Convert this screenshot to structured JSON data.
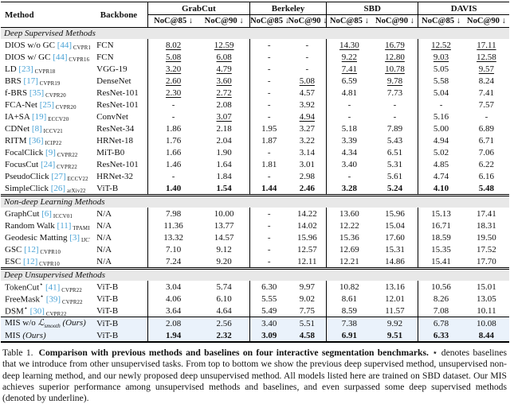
{
  "colors": {
    "citation_blue": "#4AA3D6",
    "section_band": "#E8E8E8",
    "highlight_row": "#EAF2FB"
  },
  "table": {
    "headers": {
      "method": "Method",
      "backbone": "Backbone",
      "benchmarks": [
        "GrabCut",
        "Berkeley",
        "SBD",
        "DAVIS"
      ],
      "noc85": "NoC@85 ↓",
      "noc90": "NoC@90 ↓"
    },
    "sections": [
      {
        "title": "Deep Supervised Methods",
        "double_rule": false,
        "rows": [
          {
            "name": "DIOS w/o GC",
            "cite": "44",
            "venue": "CVPR16",
            "backbone": "FCN",
            "vals": [
              "8.02",
              "12.59",
              "-",
              "-",
              "14.30",
              "16.79",
              "12.52",
              "17.11"
            ],
            "styles": [
              "u",
              "u",
              "",
              "",
              "u",
              "u",
              "u",
              "u"
            ]
          },
          {
            "name": "DIOS w/ GC",
            "cite": "44",
            "venue": "CVPR16",
            "backbone": "FCN",
            "vals": [
              "5.08",
              "6.08",
              "-",
              "-",
              "9.22",
              "12.80",
              "9.03",
              "12.58"
            ],
            "styles": [
              "u",
              "u",
              "",
              "",
              "u",
              "u",
              "u",
              "u"
            ]
          },
          {
            "name": "LD",
            "cite": "23",
            "venue": "CVPR18",
            "backbone": "VGG-19",
            "vals": [
              "3.20",
              "4.79",
              "-",
              "-",
              "7.41",
              "10.78",
              "5.05",
              "9.57"
            ],
            "styles": [
              "u",
              "u",
              "",
              "",
              "u",
              "u",
              "",
              "u"
            ]
          },
          {
            "name": "BRS",
            "cite": "17",
            "venue": "CVPR19",
            "backbone": "DenseNet",
            "vals": [
              "2.60",
              "3.60",
              "-",
              "5.08",
              "6.59",
              "9.78",
              "5.58",
              "8.24"
            ],
            "styles": [
              "u",
              "u",
              "",
              "u",
              "",
              "u",
              "",
              ""
            ]
          },
          {
            "name": "f-BRS",
            "cite": "35",
            "venue": "CVPR20",
            "backbone": "ResNet-101",
            "vals": [
              "2.30",
              "2.72",
              "-",
              "4.57",
              "4.81",
              "7.73",
              "5.04",
              "7.41"
            ],
            "styles": [
              "u",
              "u",
              "",
              "",
              "",
              "",
              "",
              ""
            ]
          },
          {
            "name": "FCA-Net",
            "cite": "25",
            "venue": "CVPR20",
            "backbone": "ResNet-101",
            "vals": [
              "-",
              "2.08",
              "-",
              "3.92",
              "-",
              "-",
              "-",
              "7.57"
            ],
            "styles": [
              "",
              "",
              "",
              "",
              "",
              "",
              "",
              ""
            ]
          },
          {
            "name": "IA+SA",
            "cite": "19",
            "venue": "ECCV20",
            "backbone": "ConvNet",
            "vals": [
              "-",
              "3.07",
              "-",
              "4.94",
              "-",
              "-",
              "5.16",
              "-"
            ],
            "styles": [
              "",
              "u",
              "",
              "u",
              "",
              "",
              "",
              ""
            ]
          },
          {
            "name": "CDNet",
            "cite": "8",
            "venue": "ICCV21",
            "backbone": "ResNet-34",
            "vals": [
              "1.86",
              "2.18",
              "1.95",
              "3.27",
              "5.18",
              "7.89",
              "5.00",
              "6.89"
            ],
            "styles": [
              "",
              "",
              "",
              "",
              "",
              "",
              "",
              ""
            ]
          },
          {
            "name": "RITM",
            "cite": "36",
            "venue": "ICIP22",
            "backbone": "HRNet-18",
            "vals": [
              "1.76",
              "2.04",
              "1.87",
              "3.22",
              "3.39",
              "5.43",
              "4.94",
              "6.71"
            ],
            "styles": [
              "",
              "",
              "",
              "",
              "",
              "",
              "",
              ""
            ]
          },
          {
            "name": "FocalClick",
            "cite": "9",
            "venue": "CVPR22",
            "backbone": "MiT-B0",
            "vals": [
              "1.66",
              "1.90",
              "-",
              "3.14",
              "4.34",
              "6.51",
              "5.02",
              "7.06"
            ],
            "styles": [
              "",
              "",
              "",
              "",
              "",
              "",
              "",
              ""
            ]
          },
          {
            "name": "FocusCut",
            "cite": "24",
            "venue": "CVPR22",
            "backbone": "ResNet-101",
            "vals": [
              "1.46",
              "1.64",
              "1.81",
              "3.01",
              "3.40",
              "5.31",
              "4.85",
              "6.22"
            ],
            "styles": [
              "",
              "",
              "",
              "",
              "",
              "",
              "",
              ""
            ]
          },
          {
            "name": "PseudoClick",
            "cite": "27",
            "venue": "ECCV22",
            "backbone": "HRNet-32",
            "vals": [
              "-",
              "1.84",
              "-",
              "2.98",
              "-",
              "5.61",
              "4.74",
              "6.16"
            ],
            "styles": [
              "",
              "",
              "",
              "",
              "",
              "",
              "",
              ""
            ]
          },
          {
            "name": "SimpleClick",
            "cite": "26",
            "venue": "arXiv22",
            "backbone": "ViT-B",
            "vals": [
              "1.40",
              "1.54",
              "1.44",
              "2.46",
              "3.28",
              "5.24",
              "4.10",
              "5.48"
            ],
            "styles": [
              "b",
              "b",
              "b",
              "b",
              "b",
              "b",
              "b",
              "b"
            ]
          }
        ]
      },
      {
        "title": "Non-deep Learning Methods",
        "double_rule": true,
        "rows": [
          {
            "name": "GraphCut",
            "cite": "6",
            "venue": "ICCV01",
            "backbone": "N/A",
            "vals": [
              "7.98",
              "10.00",
              "-",
              "14.22",
              "13.60",
              "15.96",
              "15.13",
              "17.41"
            ],
            "styles": [
              "",
              "",
              "",
              "",
              "",
              "",
              "",
              ""
            ]
          },
          {
            "name": "Random Walk",
            "cite": "11",
            "venue": "TPAMI06",
            "backbone": "N/A",
            "vals": [
              "11.36",
              "13.77",
              "-",
              "14.02",
              "12.22",
              "15.04",
              "16.71",
              "18.31"
            ],
            "styles": [
              "",
              "",
              "",
              "",
              "",
              "",
              "",
              ""
            ]
          },
          {
            "name": "Geodesic Matting",
            "cite": "3",
            "venue": "IJCV09",
            "backbone": "N/A",
            "vals": [
              "13.32",
              "14.57",
              "-",
              "15.96",
              "15.36",
              "17.60",
              "18.59",
              "19.50"
            ],
            "styles": [
              "",
              "",
              "",
              "",
              "",
              "",
              "",
              ""
            ]
          },
          {
            "name": "GSC",
            "cite": "12",
            "venue": "CVPR10",
            "backbone": "N/A",
            "vals": [
              "7.10",
              "9.12",
              "-",
              "12.57",
              "12.69",
              "15.31",
              "15.35",
              "17.52"
            ],
            "styles": [
              "",
              "",
              "",
              "",
              "",
              "",
              "",
              ""
            ]
          },
          {
            "name": "ESC",
            "cite": "12",
            "venue": "CVPR10",
            "backbone": "N/A",
            "vals": [
              "7.24",
              "9.20",
              "-",
              "12.11",
              "12.21",
              "14.86",
              "15.41",
              "17.70"
            ],
            "styles": [
              "",
              "",
              "",
              "",
              "",
              "",
              "",
              ""
            ]
          }
        ]
      },
      {
        "title": "Deep Unsupervised Methods",
        "double_rule": true,
        "rows": [
          {
            "name": "TokenCut",
            "star": true,
            "cite": "41",
            "venue": "CVPR22",
            "backbone": "ViT-B",
            "vals": [
              "3.04",
              "5.74",
              "6.30",
              "9.97",
              "10.82",
              "13.16",
              "10.56",
              "15.01"
            ],
            "styles": [
              "",
              "",
              "",
              "",
              "",
              "",
              "",
              ""
            ]
          },
          {
            "name": "FreeMask",
            "star": true,
            "cite": "39",
            "venue": "CVPR22",
            "backbone": "ViT-B",
            "vals": [
              "4.06",
              "6.10",
              "5.55",
              "9.02",
              "8.61",
              "12.01",
              "8.26",
              "13.05"
            ],
            "styles": [
              "",
              "",
              "",
              "",
              "",
              "",
              "",
              ""
            ]
          },
          {
            "name": "DSM",
            "star": true,
            "cite": "30",
            "venue": "CVPR22",
            "backbone": "ViT-B",
            "vals": [
              "3.64",
              "4.64",
              "5.49",
              "7.75",
              "8.59",
              "11.57",
              "7.08",
              "10.11"
            ],
            "styles": [
              "",
              "",
              "",
              "",
              "",
              "",
              "",
              ""
            ]
          },
          {
            "name": "MIS w/o",
            "math": "smooth",
            "ours": true,
            "backbone": "ViT-B",
            "highlight": true,
            "rule_above": true,
            "vals": [
              "2.08",
              "2.56",
              "3.40",
              "5.51",
              "7.38",
              "9.92",
              "6.78",
              "10.08"
            ],
            "styles": [
              "",
              "",
              "",
              "",
              "",
              "",
              "",
              ""
            ]
          },
          {
            "name": "MIS",
            "ours": true,
            "backbone": "ViT-B",
            "highlight": true,
            "vals": [
              "1.94",
              "2.32",
              "3.09",
              "4.58",
              "6.91",
              "9.51",
              "6.33",
              "8.44"
            ],
            "styles": [
              "b",
              "b",
              "b",
              "b",
              "b",
              "b",
              "b",
              "b"
            ]
          }
        ]
      }
    ]
  },
  "caption": {
    "label": "Table 1.",
    "bold": "Comparison with previous methods and baselines on four interactive segmentation benchmarks.",
    "rest": " ⋆ denotes baselines that we introduce from other unsupervised tasks. From top to bottom we show the previous deep supervised method, unsupervised non-deep learning method, and our newly proposed deep unsupervised method. All models listed here are trained on SBD dataset. Our MIS achieves superior performance among unsupervised methods and baselines, and even surpassed some deep supervised methods (denoted by underline)."
  }
}
